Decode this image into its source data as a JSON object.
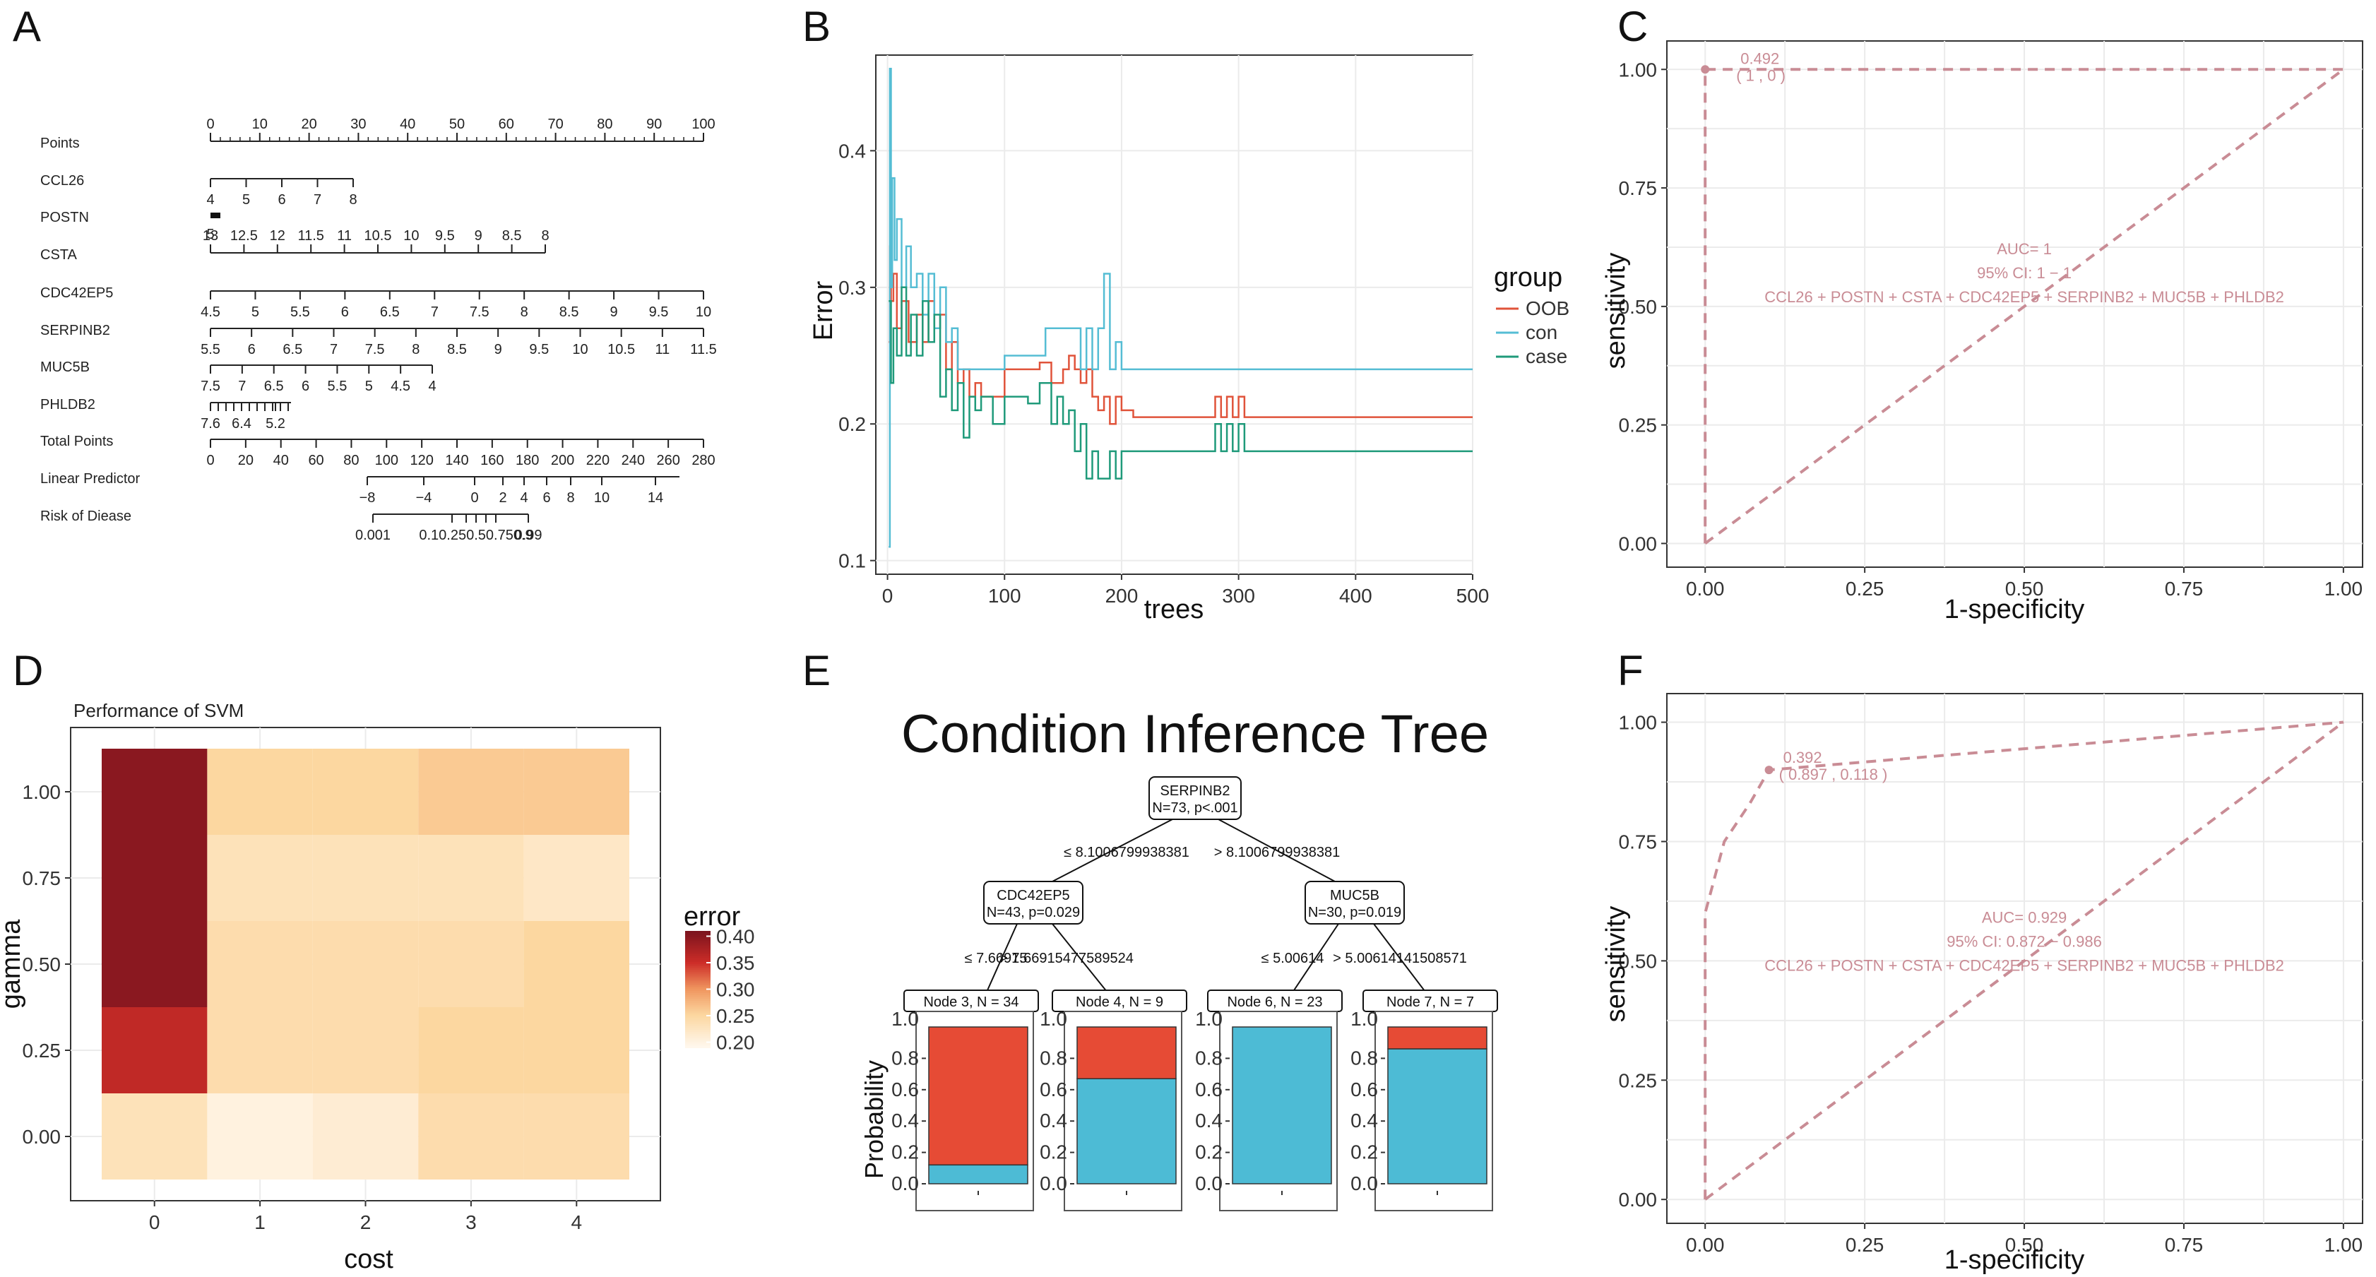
{
  "panels": {
    "A": "A",
    "B": "B",
    "C": "C",
    "D": "D",
    "E": "E",
    "F": "F"
  },
  "colors": {
    "oob": "#e0533a",
    "con": "#55bdd4",
    "case": "#1f9a7a",
    "roc": "#c98c95",
    "tree_red": "#e64b35",
    "tree_blue": "#4dbbd5"
  },
  "nomogram": {
    "rows": [
      {
        "label": "Points",
        "ticks": [
          "0",
          "10",
          "20",
          "30",
          "40",
          "50",
          "60",
          "70",
          "80",
          "90",
          "100"
        ],
        "above": true
      },
      {
        "label": "CCL26",
        "ticks": [
          "4",
          "5",
          "6",
          "7",
          "8"
        ]
      },
      {
        "label": "POSTN",
        "ticks": [
          "5"
        ]
      },
      {
        "label": "CSTA",
        "ticks": [
          "13",
          "12.5",
          "12",
          "11.5",
          "11",
          "10.5",
          "10",
          "9.5",
          "9",
          "8.5",
          "8"
        ],
        "above": false
      },
      {
        "label": "CDC42EP5",
        "ticks": [
          "4.5",
          "5",
          "5.5",
          "6",
          "6.5",
          "7",
          "7.5",
          "8",
          "8.5",
          "9",
          "9.5",
          "10"
        ]
      },
      {
        "label": "SERPINB2",
        "ticks": [
          "5.5",
          "6",
          "6.5",
          "7",
          "7.5",
          "8",
          "8.5",
          "9",
          "9.5",
          "10",
          "10.5",
          "11",
          "11.5"
        ]
      },
      {
        "label": "MUC5B",
        "ticks": [
          "7.5",
          "7",
          "6.5",
          "6",
          "5.5",
          "5",
          "4.5",
          "4"
        ]
      },
      {
        "label": "PHLDB2",
        "ticks": [
          "7.6",
          "6.4",
          "5.2"
        ]
      },
      {
        "label": "Total Points",
        "ticks": [
          "0",
          "20",
          "40",
          "60",
          "80",
          "100",
          "120",
          "140",
          "160",
          "180",
          "200",
          "220",
          "240",
          "260",
          "280"
        ]
      },
      {
        "label": "Linear Predictor",
        "ticks": [
          "−8",
          "−4",
          "0",
          "2",
          "4",
          "6",
          "8",
          "10",
          "14"
        ]
      },
      {
        "label": "Risk of Diease",
        "ticks": [
          "0.001",
          "0.1",
          "0.25",
          "0.5",
          "0.75",
          "0.9",
          "0.99"
        ],
        "tick_text": "0.10.250.50.750.9"
      }
    ]
  },
  "chart_data": [
    {
      "panel": "B",
      "type": "line",
      "xlabel": "trees",
      "ylabel": "Error",
      "xlim": [
        -10,
        500
      ],
      "ylim": [
        0.09,
        0.47
      ],
      "xticks": [
        0,
        100,
        200,
        300,
        400,
        500
      ],
      "yticks": [
        0.1,
        0.2,
        0.3,
        0.4
      ],
      "legend_title": "group",
      "series": [
        {
          "name": "OOB",
          "color_key": "oob",
          "points": [
            [
              1,
              0.26
            ],
            [
              2,
              0.33
            ],
            [
              3,
              0.29
            ],
            [
              5,
              0.31
            ],
            [
              8,
              0.27
            ],
            [
              12,
              0.29
            ],
            [
              18,
              0.26
            ],
            [
              25,
              0.28
            ],
            [
              30,
              0.26
            ],
            [
              35,
              0.29
            ],
            [
              40,
              0.27
            ],
            [
              45,
              0.28
            ],
            [
              50,
              0.24
            ],
            [
              55,
              0.26
            ],
            [
              60,
              0.23
            ],
            [
              65,
              0.24
            ],
            [
              70,
              0.22
            ],
            [
              75,
              0.23
            ],
            [
              80,
              0.22
            ],
            [
              90,
              0.22
            ],
            [
              100,
              0.24
            ],
            [
              110,
              0.24
            ],
            [
              120,
              0.24
            ],
            [
              130,
              0.245
            ],
            [
              140,
              0.23
            ],
            [
              150,
              0.24
            ],
            [
              155,
              0.25
            ],
            [
              160,
              0.24
            ],
            [
              165,
              0.23
            ],
            [
              170,
              0.24
            ],
            [
              175,
              0.22
            ],
            [
              180,
              0.21
            ],
            [
              185,
              0.22
            ],
            [
              190,
              0.2
            ],
            [
              195,
              0.22
            ],
            [
              200,
              0.21
            ],
            [
              210,
              0.205
            ],
            [
              270,
              0.205
            ],
            [
              280,
              0.22
            ],
            [
              285,
              0.205
            ],
            [
              290,
              0.22
            ],
            [
              295,
              0.205
            ],
            [
              300,
              0.22
            ],
            [
              305,
              0.205
            ],
            [
              500,
              0.205
            ]
          ]
        },
        {
          "name": "con",
          "color_key": "con",
          "points": [
            [
              1,
              0.11
            ],
            [
              2,
              0.46
            ],
            [
              3,
              0.3
            ],
            [
              4,
              0.38
            ],
            [
              6,
              0.32
            ],
            [
              8,
              0.35
            ],
            [
              12,
              0.3
            ],
            [
              16,
              0.33
            ],
            [
              20,
              0.3
            ],
            [
              25,
              0.31
            ],
            [
              30,
              0.28
            ],
            [
              35,
              0.31
            ],
            [
              40,
              0.27
            ],
            [
              45,
              0.3
            ],
            [
              50,
              0.26
            ],
            [
              55,
              0.27
            ],
            [
              60,
              0.24
            ],
            [
              70,
              0.24
            ],
            [
              80,
              0.24
            ],
            [
              100,
              0.25
            ],
            [
              120,
              0.25
            ],
            [
              135,
              0.27
            ],
            [
              160,
              0.27
            ],
            [
              165,
              0.24
            ],
            [
              170,
              0.27
            ],
            [
              175,
              0.24
            ],
            [
              180,
              0.27
            ],
            [
              185,
              0.31
            ],
            [
              190,
              0.24
            ],
            [
              195,
              0.26
            ],
            [
              200,
              0.24
            ],
            [
              500,
              0.24
            ]
          ]
        },
        {
          "name": "case",
          "color_key": "case",
          "points": [
            [
              1,
              0.29
            ],
            [
              3,
              0.23
            ],
            [
              5,
              0.27
            ],
            [
              8,
              0.25
            ],
            [
              12,
              0.3
            ],
            [
              16,
              0.25
            ],
            [
              20,
              0.28
            ],
            [
              25,
              0.25
            ],
            [
              30,
              0.29
            ],
            [
              35,
              0.26
            ],
            [
              40,
              0.28
            ],
            [
              45,
              0.22
            ],
            [
              50,
              0.24
            ],
            [
              55,
              0.21
            ],
            [
              60,
              0.23
            ],
            [
              65,
              0.19
            ],
            [
              70,
              0.22
            ],
            [
              75,
              0.21
            ],
            [
              80,
              0.22
            ],
            [
              90,
              0.2
            ],
            [
              100,
              0.22
            ],
            [
              110,
              0.22
            ],
            [
              120,
              0.215
            ],
            [
              130,
              0.23
            ],
            [
              140,
              0.2
            ],
            [
              145,
              0.22
            ],
            [
              150,
              0.2
            ],
            [
              155,
              0.21
            ],
            [
              160,
              0.18
            ],
            [
              165,
              0.2
            ],
            [
              170,
              0.16
            ],
            [
              175,
              0.18
            ],
            [
              180,
              0.16
            ],
            [
              190,
              0.18
            ],
            [
              195,
              0.16
            ],
            [
              200,
              0.18
            ],
            [
              205,
              0.18
            ],
            [
              270,
              0.18
            ],
            [
              280,
              0.2
            ],
            [
              285,
              0.18
            ],
            [
              290,
              0.2
            ],
            [
              295,
              0.18
            ],
            [
              300,
              0.2
            ],
            [
              305,
              0.18
            ],
            [
              500,
              0.18
            ]
          ]
        }
      ]
    },
    {
      "panel": "C",
      "type": "line",
      "xlabel": "1-specificity",
      "ylabel": "sensitivity",
      "xlim": [
        -0.06,
        1.03
      ],
      "ylim": [
        -0.05,
        1.06
      ],
      "xticks": [
        "0.00",
        "0.25",
        "0.50",
        "0.75",
        "1.00"
      ],
      "yticks": [
        "0.00",
        "0.25",
        "0.50",
        "0.75",
        "1.00"
      ],
      "roc": [
        [
          0,
          0
        ],
        [
          0,
          1
        ],
        [
          1,
          1
        ]
      ],
      "diagonal": [
        [
          0,
          0
        ],
        [
          1,
          1
        ]
      ],
      "point": [
        0,
        1
      ],
      "point_label": "0.492",
      "point_coords": "( 1 , 0 )",
      "auc_lines": [
        "AUC= 1",
        "95% CI:  1 − 1",
        "CCL26 + POSTN + CSTA + CDC42EP5 + SERPINB2 + MUC5B + PHLDB2"
      ]
    },
    {
      "panel": "D",
      "type": "heatmap",
      "title": "Performance of SVM",
      "xlabel": "cost",
      "ylabel": "gamma",
      "x": [
        0,
        1,
        2,
        3,
        4
      ],
      "y": [
        0.0,
        0.25,
        0.5,
        0.75,
        1.0
      ],
      "xticks": [
        "0",
        "1",
        "2",
        "3",
        "4"
      ],
      "yticks": [
        "0.00",
        "0.25",
        "0.50",
        "0.75",
        "1.00"
      ],
      "values": [
        [
          0.23,
          0.2,
          0.21,
          0.24,
          0.24
        ],
        [
          0.36,
          0.24,
          0.24,
          0.25,
          0.25
        ],
        [
          0.4,
          0.24,
          0.24,
          0.24,
          0.25
        ],
        [
          0.4,
          0.23,
          0.23,
          0.23,
          0.22
        ],
        [
          0.4,
          0.25,
          0.25,
          0.26,
          0.26
        ]
      ],
      "legend_title": "error",
      "legend_ticks": [
        "0.40",
        "0.35",
        "0.30",
        "0.25",
        "0.20"
      ],
      "zlim": [
        0.19,
        0.41
      ]
    },
    {
      "panel": "E",
      "type": "tree",
      "title": "Condition Inference Tree",
      "ylabel": "Probability",
      "nodes": {
        "root": {
          "name": "SERPINB2",
          "info": "N=73, p<.001"
        },
        "left": {
          "name": "CDC42EP5",
          "info": "N=43, p=0.029"
        },
        "right": {
          "name": "MUC5B",
          "info": "N=30, p=0.019"
        }
      },
      "splits": {
        "root_left": "≤ 8.1006799938381",
        "root_right": "> 8.1006799938381",
        "left_left": "≤ 7.66915",
        "left_right": "> 7.66915477589524",
        "right_left": "≤ 5.00614",
        "right_right": "> 5.00614141508571"
      },
      "leaves": [
        {
          "label": "Node 3, N = 34",
          "red": 0.88
        },
        {
          "label": "Node 4, N = 9",
          "red": 0.33
        },
        {
          "label": "Node 6, N = 23",
          "red": 0.0
        },
        {
          "label": "Node 7, N = 7",
          "red": 0.14
        }
      ],
      "yticks": [
        "0.0",
        "0.2",
        "0.4",
        "0.6",
        "0.8",
        "1.0"
      ]
    },
    {
      "panel": "F",
      "type": "line",
      "xlabel": "1-specificity",
      "ylabel": "sensitivity",
      "xlim": [
        -0.06,
        1.03
      ],
      "ylim": [
        -0.05,
        1.06
      ],
      "xticks": [
        "0.00",
        "0.25",
        "0.50",
        "0.75",
        "1.00"
      ],
      "yticks": [
        "0.00",
        "0.25",
        "0.50",
        "0.75",
        "1.00"
      ],
      "roc": [
        [
          0,
          0
        ],
        [
          0,
          0.6
        ],
        [
          0.03,
          0.75
        ],
        [
          0.07,
          0.83
        ],
        [
          0.1,
          0.9
        ],
        [
          1,
          1
        ]
      ],
      "diagonal": [
        [
          0,
          0
        ],
        [
          1,
          1
        ]
      ],
      "point": [
        0.1,
        0.9
      ],
      "point_label": "0.392",
      "point_coords": "( 0.897 , 0.118 )",
      "auc_lines": [
        "AUC= 0.929",
        "95% CI:  0.872 − 0.986",
        "CCL26 + POSTN + CSTA + CDC42EP5 + SERPINB2 + MUC5B + PHLDB2"
      ]
    }
  ]
}
